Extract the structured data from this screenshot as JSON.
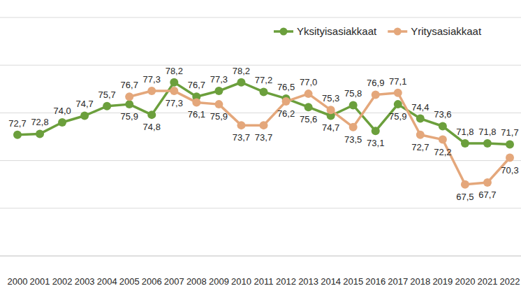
{
  "chart_data": {
    "type": "line",
    "categories": [
      "2000",
      "2001",
      "2002",
      "2003",
      "2004",
      "2005",
      "2006",
      "2007",
      "2008",
      "2009",
      "2010",
      "2011",
      "2012",
      "2013",
      "2014",
      "2015",
      "2016",
      "2017",
      "2018",
      "2019",
      "2020",
      "2021",
      "2022"
    ],
    "series": [
      {
        "name": "Yksityisasiakkaat",
        "color": "#6b9f3c",
        "marker": "circle",
        "values": [
          72.7,
          72.8,
          74.0,
          74.7,
          75.7,
          75.9,
          74.8,
          78.2,
          76.7,
          77.3,
          78.2,
          77.2,
          76.5,
          75.6,
          74.7,
          75.8,
          73.1,
          75.9,
          74.4,
          73.6,
          71.8,
          71.8,
          71.7
        ],
        "value_labels": [
          "72,7",
          "72,8",
          "74,0",
          "74,7",
          "75,7",
          "75,9",
          "74,8",
          "78,2",
          "76,7",
          "77,3",
          "78,2",
          "77,2",
          "76,5",
          "75,6",
          "74,7",
          "75,8",
          "73,1",
          "75,9",
          "74,4",
          "73,6",
          "71,8",
          "71,8",
          "71,7"
        ]
      },
      {
        "name": "Yritysasiakkaat",
        "color": "#e4a77b",
        "marker": "circle",
        "values": [
          null,
          null,
          null,
          null,
          null,
          76.7,
          77.3,
          77.3,
          76.1,
          75.9,
          73.7,
          73.7,
          76.2,
          77.0,
          75.3,
          73.5,
          76.9,
          77.1,
          72.7,
          72.2,
          67.5,
          67.7,
          70.3
        ],
        "value_labels": [
          null,
          null,
          null,
          null,
          null,
          "76,7",
          "77,3",
          "77,3",
          "76,1",
          "75,9",
          "73,7",
          "73,7",
          "76,2",
          "77,0",
          "75,3",
          "73,5",
          "76,9",
          "77,1",
          "72,7",
          "72,2",
          "67,5",
          "67,7",
          "70,3"
        ]
      }
    ],
    "ylim": [
      60,
      85
    ],
    "yticks": [
      60,
      65,
      70,
      75,
      80,
      85
    ],
    "grid": true,
    "legend": "top-right",
    "data_labels": true,
    "tick_labels": "x"
  }
}
